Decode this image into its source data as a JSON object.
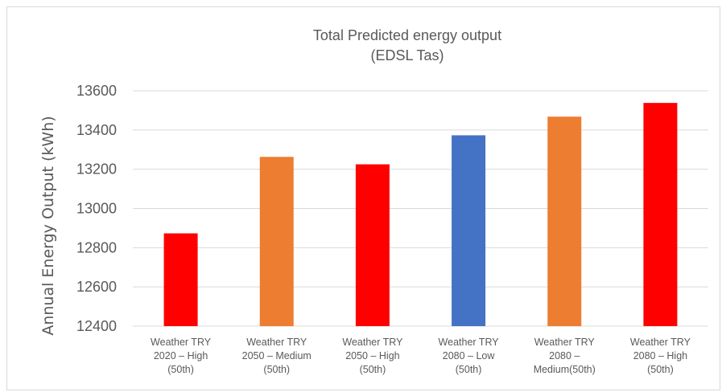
{
  "chart_data": {
    "type": "bar",
    "title_lines": [
      "Total  Predicted energy output",
      "(EDSL Tas)"
    ],
    "ylabel": "Annual Energy Output (kWh)",
    "xlabel": "",
    "ylim": [
      12400,
      13600
    ],
    "yticks": [
      12400,
      12600,
      12800,
      13000,
      13200,
      13400,
      13600
    ],
    "grid": true,
    "legend": "none",
    "categories": [
      [
        "Weather TRY",
        "2020 – High",
        "(50th)"
      ],
      [
        "Weather TRY",
        "2050 – Medium",
        "(50th)"
      ],
      [
        "Weather TRY",
        "2050 – High",
        "(50th)"
      ],
      [
        "Weather TRY",
        "2080 – Low",
        "(50th)"
      ],
      [
        "Weather TRY",
        "2080 –",
        "Medium(50th)"
      ],
      [
        "Weather TRY",
        "2080 – High",
        "(50th)"
      ]
    ],
    "values": [
      12873,
      13263,
      13225,
      13373,
      13468,
      13538
    ],
    "colors": [
      "#ff0000",
      "#ed7d31",
      "#ff0000",
      "#4472c4",
      "#ed7d31",
      "#ff0000"
    ]
  },
  "colors": {
    "gridline": "#d9d9d9",
    "text": "#595959"
  }
}
